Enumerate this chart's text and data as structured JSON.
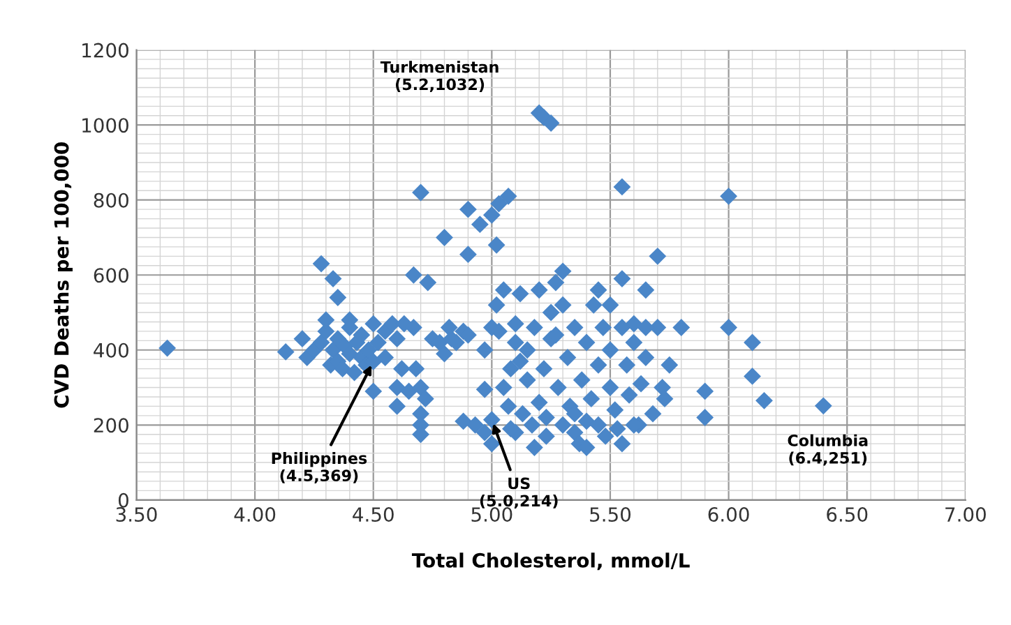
{
  "chart_data": {
    "type": "scatter",
    "xlabel": "Total Cholesterol, mmol/L",
    "ylabel": "CVD Deaths per 100,000",
    "marker": "diamond",
    "grid": true,
    "xlim": [
      3.5,
      7.0
    ],
    "ylim": [
      0,
      1200
    ],
    "xticks": [
      {
        "value": 3.5,
        "label": "3.50"
      },
      {
        "value": 4.0,
        "label": "4.00"
      },
      {
        "value": 4.5,
        "label": "4.50"
      },
      {
        "value": 5.0,
        "label": "5.00"
      },
      {
        "value": 5.5,
        "label": "5.50"
      },
      {
        "value": 6.0,
        "label": "6.00"
      },
      {
        "value": 6.5,
        "label": "6.50"
      },
      {
        "value": 7.0,
        "label": "7.00"
      }
    ],
    "yticks": [
      0,
      200,
      400,
      600,
      800,
      1000,
      1200
    ],
    "annotations": [
      "Turkmenistan\n(5.2,1032)",
      {
        "text": "Philippines\n(4.5,369)",
        "x": 4.5,
        "y": 369
      },
      {
        "text": "US\n(5.0,214)",
        "x": 5.0,
        "y": 214
      },
      "Columbia\n(6.4,251)"
    ],
    "series": [
      {
        "color": "#4a86c8",
        "x": [
          3.63,
          4.13,
          4.2,
          4.22,
          4.25,
          4.28,
          4.3,
          4.3,
          4.32,
          4.33,
          4.35,
          4.35,
          4.37,
          4.38,
          4.4,
          4.4,
          4.42,
          4.43,
          4.45,
          4.45,
          4.47,
          4.48,
          4.5,
          4.5,
          4.52,
          4.55,
          4.55,
          4.58,
          4.6,
          4.6,
          4.62,
          4.63,
          4.65,
          4.67,
          4.68,
          4.7,
          4.7,
          4.7,
          4.72,
          4.7,
          4.75,
          4.78,
          4.8,
          4.82,
          4.83,
          4.5,
          4.6,
          4.28,
          4.33,
          4.35,
          4.4,
          4.67,
          4.73,
          4.85,
          4.88,
          4.9,
          4.88,
          4.93,
          4.97,
          5.0,
          5.0,
          4.97,
          4.97,
          5.0,
          5.02,
          5.05,
          5.05,
          5.07,
          5.08,
          5.1,
          5.1,
          5.1,
          5.12,
          5.13,
          5.15,
          5.15,
          5.17,
          5.18,
          5.2,
          5.2,
          5.22,
          5.23,
          5.25,
          5.25,
          5.27,
          5.28,
          5.3,
          5.3,
          5.32,
          5.33,
          5.35,
          5.35,
          5.37,
          5.38,
          5.4,
          5.4,
          5.42,
          5.43,
          5.45,
          5.45,
          5.47,
          5.48,
          5.5,
          5.5,
          5.5,
          5.52,
          5.53,
          5.55,
          5.55,
          5.57,
          5.58,
          5.6,
          5.6,
          5.62,
          5.63,
          5.65,
          5.68,
          5.7,
          5.72,
          5.73,
          5.45,
          5.3,
          5.27,
          5.12,
          5.18,
          5.4,
          5.08,
          5.23,
          5.35,
          5.03,
          4.7,
          4.8,
          4.9,
          4.9,
          4.95,
          5.0,
          5.03,
          5.07,
          5.02,
          5.2,
          5.22,
          5.25,
          5.55,
          6.0,
          5.7,
          5.55,
          5.65,
          5.75,
          5.8,
          5.9,
          5.9,
          6.0,
          6.1,
          6.1,
          6.15,
          6.4,
          5.6,
          5.65
        ],
        "values": [
          405,
          395,
          430,
          380,
          400,
          420,
          450,
          480,
          360,
          400,
          430,
          370,
          350,
          410,
          390,
          460,
          340,
          420,
          380,
          440,
          360,
          400,
          369,
          470,
          420,
          450,
          380,
          470,
          430,
          300,
          350,
          470,
          290,
          460,
          350,
          300,
          200,
          230,
          270,
          175,
          430,
          420,
          390,
          460,
          430,
          290,
          250,
          630,
          590,
          540,
          480,
          600,
          580,
          420,
          450,
          440,
          210,
          200,
          180,
          214,
          150,
          295,
          400,
          460,
          520,
          560,
          300,
          250,
          350,
          420,
          470,
          180,
          550,
          230,
          320,
          400,
          200,
          460,
          560,
          260,
          350,
          170,
          500,
          430,
          580,
          300,
          200,
          610,
          380,
          250,
          180,
          460,
          150,
          320,
          210,
          420,
          270,
          520,
          360,
          200,
          460,
          170,
          300,
          400,
          520,
          240,
          190,
          460,
          150,
          360,
          280,
          470,
          420,
          200,
          310,
          380,
          230,
          460,
          300,
          270,
          560,
          520,
          440,
          370,
          140,
          140,
          190,
          220,
          230,
          450,
          820,
          700,
          775,
          655,
          735,
          760,
          790,
          810,
          680,
          1032,
          1020,
          1005,
          835,
          810,
          650,
          590,
          560,
          360,
          460,
          290,
          220,
          460,
          420,
          330,
          265,
          251,
          200,
          460
        ]
      }
    ]
  }
}
